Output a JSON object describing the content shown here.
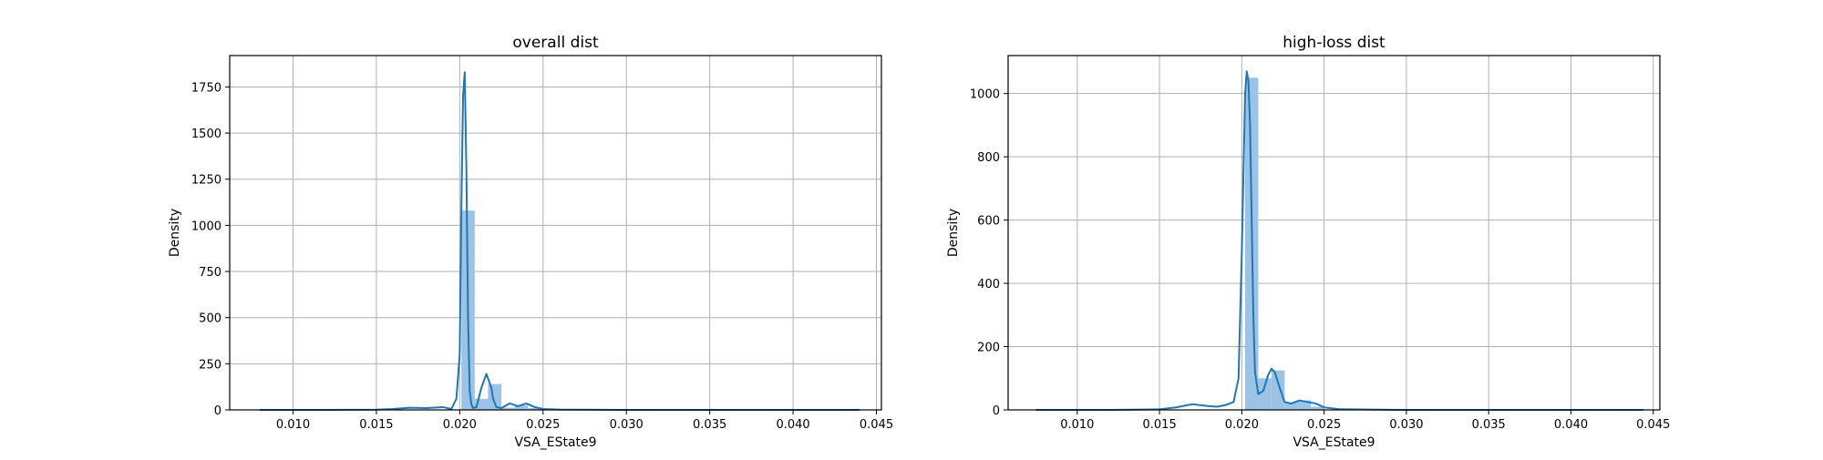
{
  "chart_data": [
    {
      "type": "histogram",
      "title": "overall dist",
      "xlabel": "VSA_EState9",
      "ylabel": "Density",
      "xlim": [
        0.0062,
        0.0453
      ],
      "ylim": [
        0,
        1920
      ],
      "grid": true,
      "xticks": [
        0.01,
        0.015,
        0.02,
        0.025,
        0.03,
        0.035,
        0.04,
        0.045
      ],
      "xtick_labels": [
        "0.010",
        "0.015",
        "0.020",
        "0.025",
        "0.030",
        "0.035",
        "0.040",
        "0.045"
      ],
      "yticks": [
        0,
        250,
        500,
        750,
        1000,
        1250,
        1500,
        1750
      ],
      "ytick_labels": [
        "0",
        "250",
        "500",
        "750",
        "1000",
        "1250",
        "1500",
        "1750"
      ],
      "bar_color": "#9cc3e6",
      "line_color": "#1f77b4",
      "bars": [
        {
          "x0": 0.0201,
          "x1": 0.0209,
          "value": 1080
        },
        {
          "x0": 0.0209,
          "x1": 0.0217,
          "value": 60
        },
        {
          "x0": 0.0217,
          "x1": 0.0225,
          "value": 140
        },
        {
          "x0": 0.0225,
          "x1": 0.0233,
          "value": 12
        },
        {
          "x0": 0.0233,
          "x1": 0.0241,
          "value": 25
        },
        {
          "x0": 0.0241,
          "x1": 0.0249,
          "value": 10
        }
      ],
      "kde": {
        "x": [
          0.008,
          0.012,
          0.015,
          0.016,
          0.017,
          0.018,
          0.019,
          0.0195,
          0.0198,
          0.02,
          0.0201,
          0.0202,
          0.0203,
          0.0204,
          0.0205,
          0.0206,
          0.0207,
          0.0208,
          0.021,
          0.0213,
          0.0216,
          0.0219,
          0.022,
          0.0222,
          0.0225,
          0.023,
          0.0235,
          0.024,
          0.0245,
          0.025,
          0.026,
          0.03,
          0.044
        ],
        "y": [
          0,
          0,
          1,
          5,
          12,
          10,
          15,
          5,
          60,
          300,
          1100,
          1700,
          1830,
          1300,
          500,
          100,
          30,
          10,
          15,
          120,
          195,
          120,
          60,
          15,
          10,
          35,
          20,
          35,
          15,
          5,
          2,
          0,
          0
        ]
      }
    },
    {
      "type": "histogram",
      "title": "high-loss dist",
      "xlabel": "VSA_EState9",
      "ylabel": "Density",
      "xlim": [
        0.0058,
        0.0454
      ],
      "ylim": [
        0,
        1120
      ],
      "grid": true,
      "xticks": [
        0.01,
        0.015,
        0.02,
        0.025,
        0.03,
        0.035,
        0.04,
        0.045
      ],
      "xtick_labels": [
        "0.010",
        "0.015",
        "0.020",
        "0.025",
        "0.030",
        "0.035",
        "0.040",
        "0.045"
      ],
      "yticks": [
        0,
        200,
        400,
        600,
        800,
        1000
      ],
      "ytick_labels": [
        "0",
        "200",
        "400",
        "600",
        "800",
        "1000"
      ],
      "bar_color": "#9cc3e6",
      "line_color": "#1f77b4",
      "bars": [
        {
          "x0": 0.0202,
          "x1": 0.021,
          "value": 1050
        },
        {
          "x0": 0.021,
          "x1": 0.0218,
          "value": 100
        },
        {
          "x0": 0.0218,
          "x1": 0.0226,
          "value": 125
        },
        {
          "x0": 0.0226,
          "x1": 0.0234,
          "value": 25
        },
        {
          "x0": 0.0234,
          "x1": 0.0242,
          "value": 30
        },
        {
          "x0": 0.0242,
          "x1": 0.025,
          "value": 10
        }
      ],
      "kde": {
        "x": [
          0.0075,
          0.012,
          0.014,
          0.015,
          0.016,
          0.017,
          0.018,
          0.0185,
          0.019,
          0.0195,
          0.0198,
          0.02,
          0.0202,
          0.0203,
          0.0204,
          0.0205,
          0.0206,
          0.0207,
          0.0208,
          0.021,
          0.0213,
          0.0216,
          0.0218,
          0.022,
          0.0223,
          0.0226,
          0.023,
          0.0235,
          0.024,
          0.0245,
          0.025,
          0.026,
          0.03,
          0.0444
        ],
        "y": [
          0,
          0,
          1,
          2,
          8,
          18,
          12,
          10,
          15,
          25,
          100,
          500,
          1000,
          1070,
          1040,
          900,
          600,
          300,
          120,
          50,
          60,
          110,
          130,
          120,
          70,
          25,
          20,
          30,
          25,
          20,
          8,
          2,
          0,
          0
        ]
      }
    }
  ]
}
